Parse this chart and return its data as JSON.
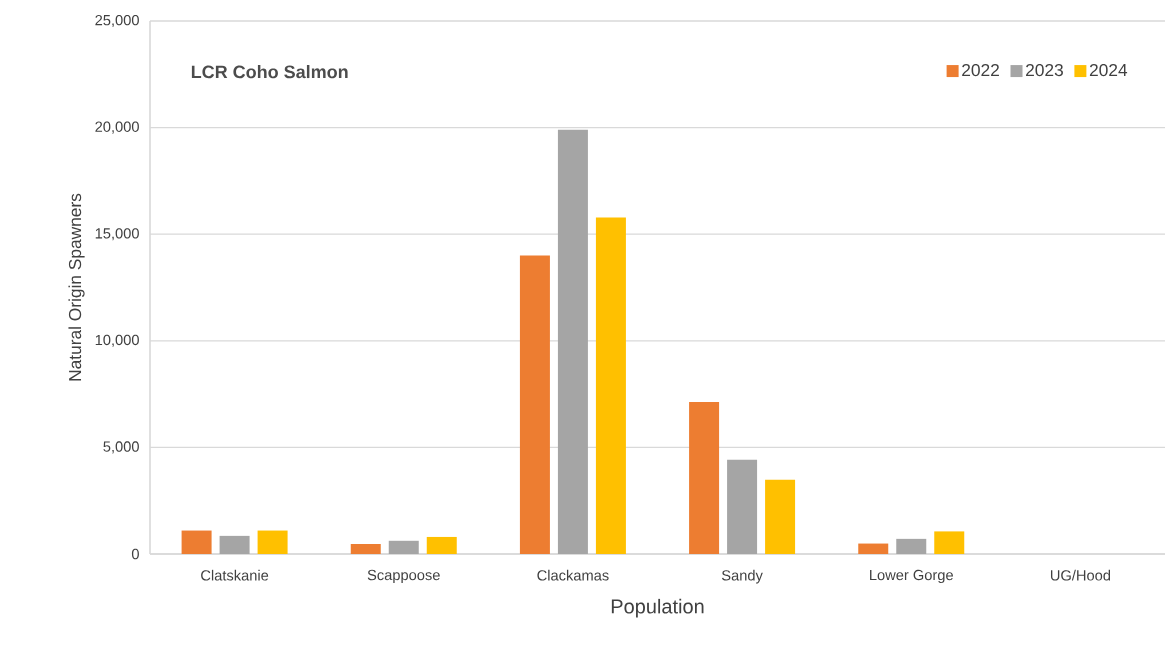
{
  "chart_data": {
    "type": "bar",
    "title": "LCR Coho Salmon",
    "xlabel": "Population",
    "ylabel": "Natural Origin Spawners",
    "categories": [
      "Clatskanie",
      "Scappoose",
      "Clackamas",
      "Sandy",
      "Lower Gorge",
      "UG/Hood"
    ],
    "series": [
      {
        "name": "2022",
        "color": "#ed7d31",
        "values": [
          1100,
          470,
          14000,
          7130,
          490,
          null
        ]
      },
      {
        "name": "2023",
        "color": "#a5a5a5",
        "values": [
          850,
          620,
          19900,
          4420,
          710,
          null
        ]
      },
      {
        "name": "2024",
        "color": "#ffc000",
        "values": [
          1100,
          800,
          15780,
          3480,
          1060,
          null
        ]
      }
    ],
    "ylim": [
      0,
      25000
    ],
    "yticks": [
      {
        "value": 0,
        "label": "0"
      },
      {
        "value": 5000,
        "label": "5,000"
      },
      {
        "value": 10000,
        "label": "10,000"
      },
      {
        "value": 15000,
        "label": "15,000"
      },
      {
        "value": 20000,
        "label": "20,000"
      },
      {
        "value": 25000,
        "label": "25,000"
      }
    ],
    "grid": "y",
    "legend": "top right"
  }
}
